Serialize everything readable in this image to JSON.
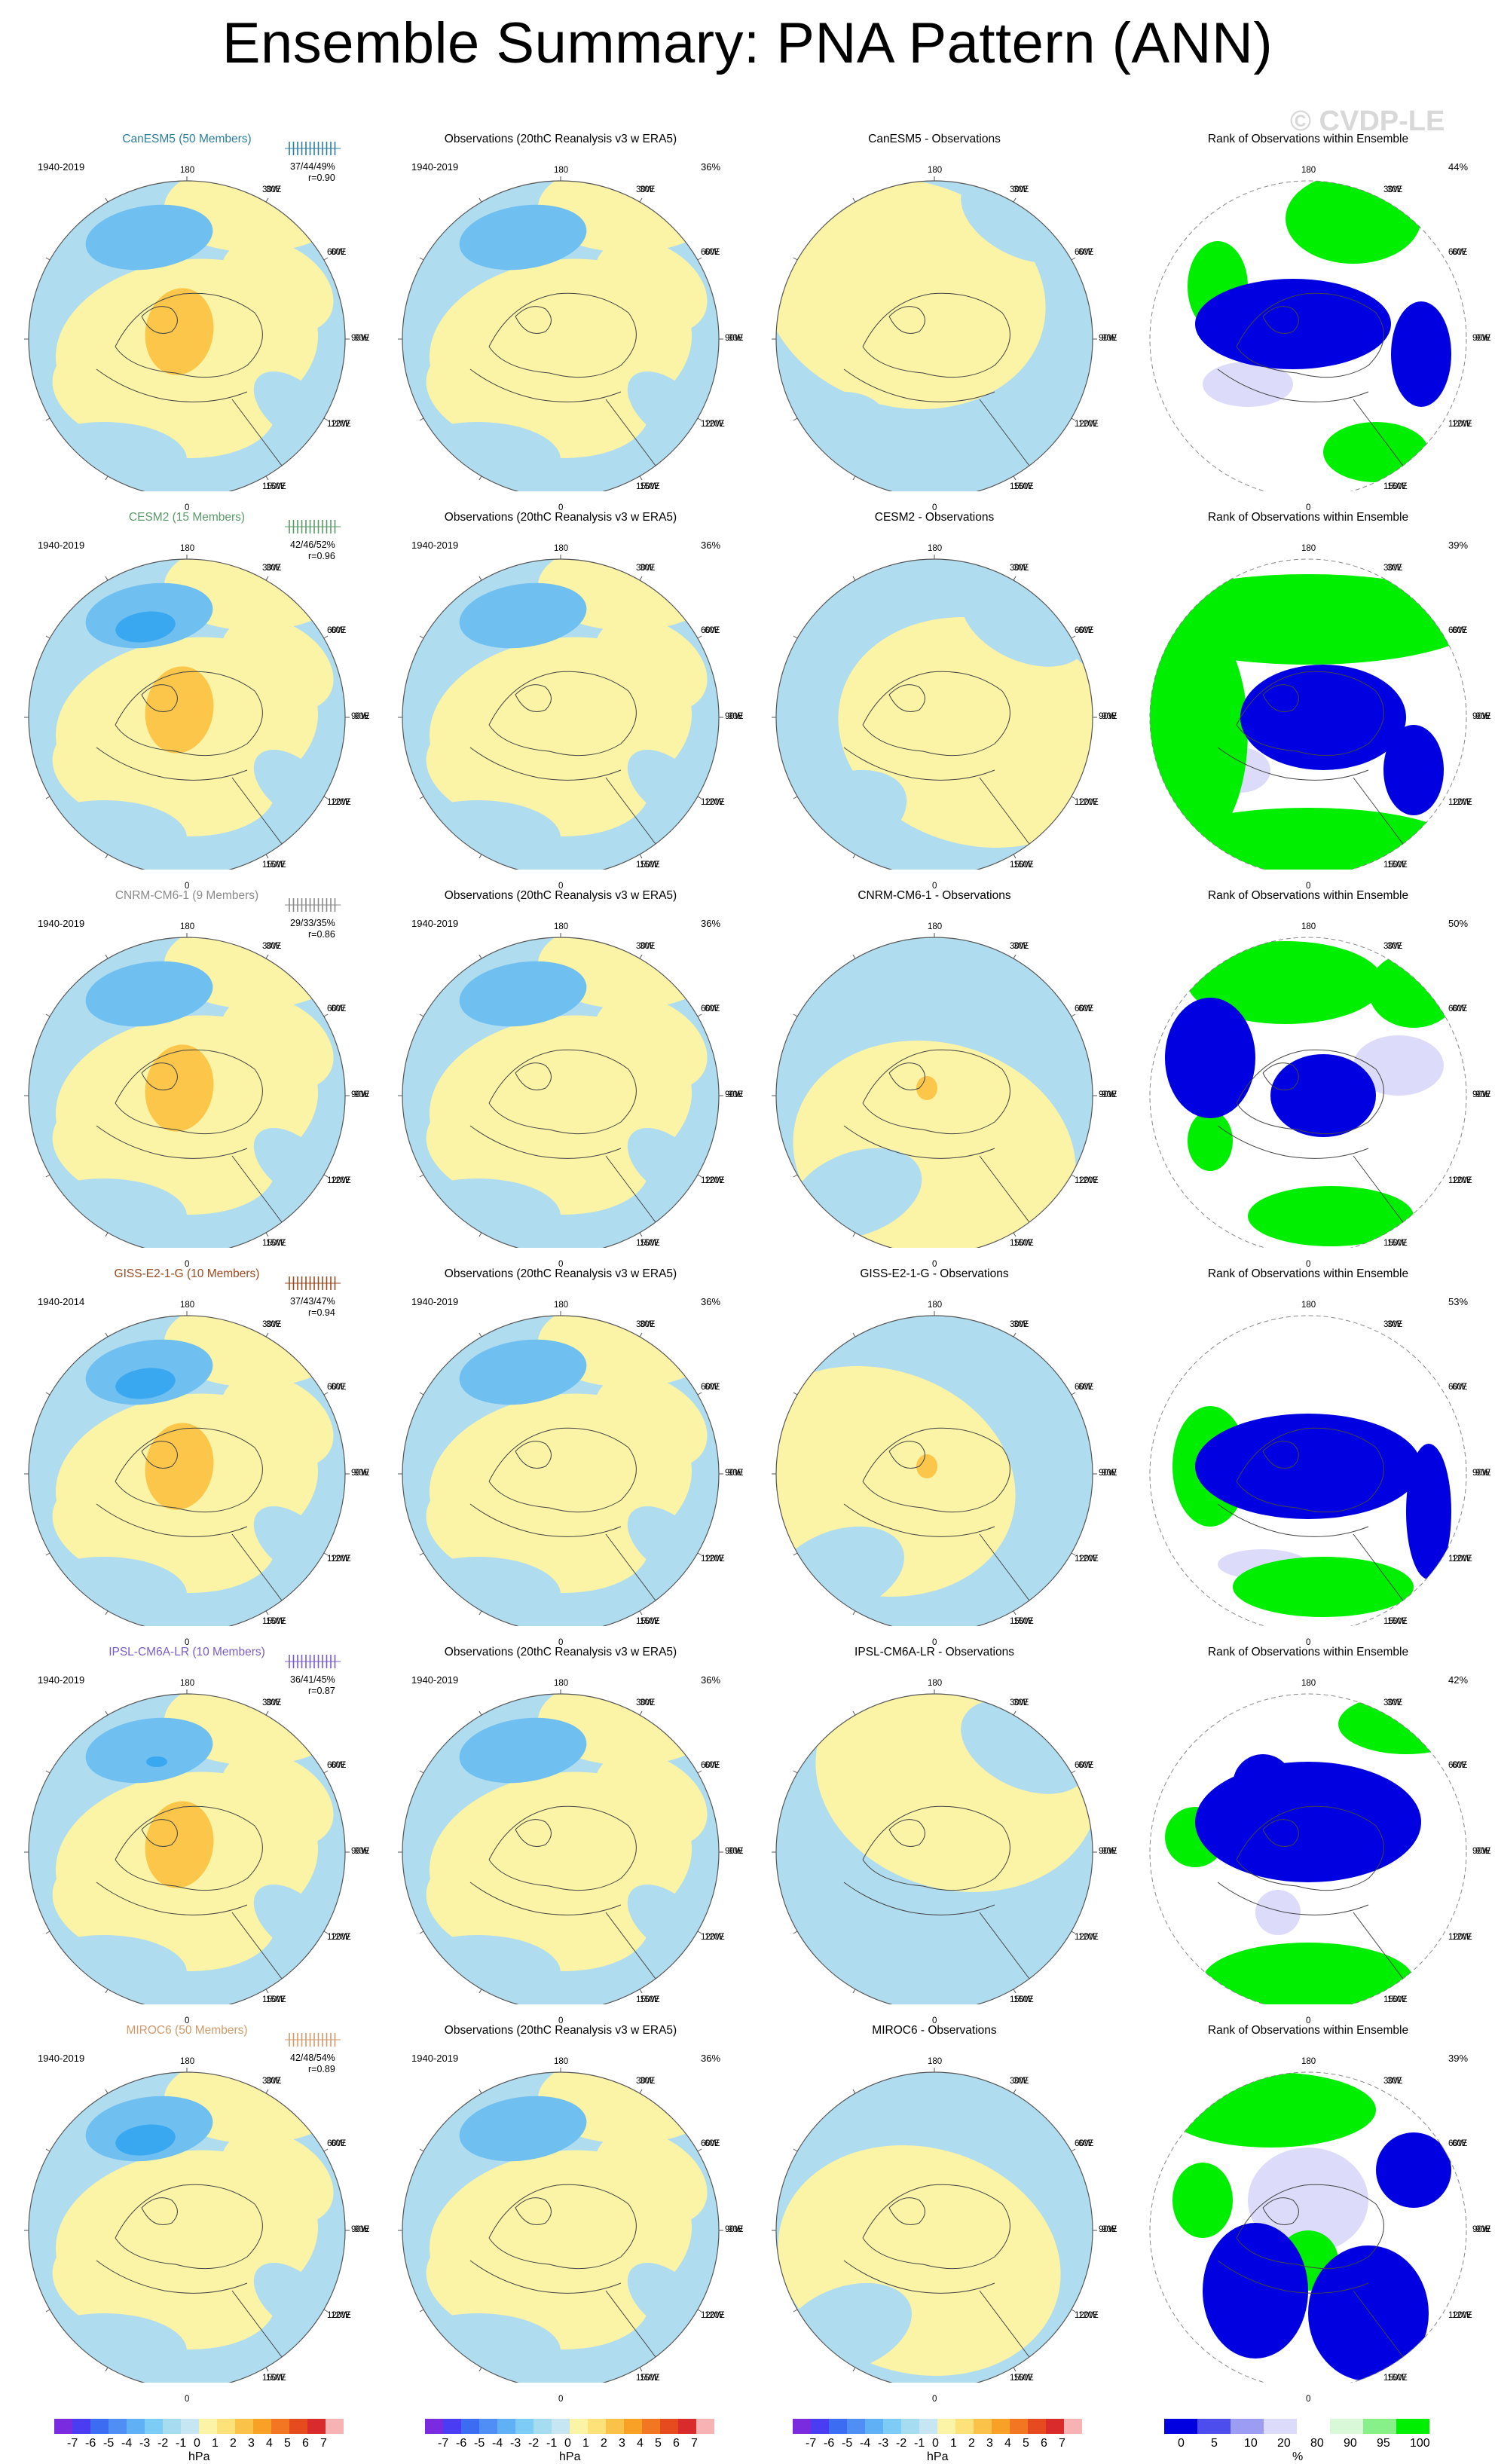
{
  "page": {
    "title": "Ensemble Summary: PNA Pattern (ANN)",
    "watermark": "© CVDP-LE"
  },
  "obs_title": "Observations (20thC Reanalysis v3 w ERA5)",
  "rank_title": "Rank of Observations within Ensemble",
  "meridians": {
    "top": "180",
    "bottom": "0",
    "left": [
      "150W",
      "120W",
      "90W",
      "60W",
      "30W"
    ],
    "right": [
      "150E",
      "120E",
      "90E",
      "60E",
      "30E"
    ]
  },
  "rows": [
    {
      "model": "CanESM5 (50 Members)",
      "diff_title": "CanESM5 - Observations",
      "color": "#2a7f9e",
      "years": "1940-2019",
      "obs_years": "1940-2019",
      "stats": "37/44/49%",
      "r": "r=0.90",
      "obs_pct": "36%",
      "rank_pct": "44%"
    },
    {
      "model": "CESM2 (15 Members)",
      "diff_title": "CESM2 - Observations",
      "color": "#5a9a68",
      "years": "1940-2019",
      "obs_years": "1940-2019",
      "stats": "42/46/52%",
      "r": "r=0.96",
      "obs_pct": "36%",
      "rank_pct": "39%"
    },
    {
      "model": "CNRM-CM6-1 (9 Members)",
      "diff_title": "CNRM-CM6-1 - Observations",
      "color": "#8a8a8a",
      "years": "1940-2019",
      "obs_years": "1940-2019",
      "stats": "29/33/35%",
      "r": "r=0.86",
      "obs_pct": "36%",
      "rank_pct": "50%"
    },
    {
      "model": "GISS-E2-1-G (10 Members)",
      "diff_title": "GISS-E2-1-G - Observations",
      "color": "#9b4a1f",
      "years": "1940-2014",
      "obs_years": "1940-2019",
      "stats": "37/43/47%",
      "r": "r=0.94",
      "obs_pct": "36%",
      "rank_pct": "53%"
    },
    {
      "model": "IPSL-CM6A-LR (10 Members)",
      "diff_title": "IPSL-CM6A-LR - Observations",
      "color": "#7a5cc8",
      "years": "1940-2019",
      "obs_years": "1940-2019",
      "stats": "36/41/45%",
      "r": "r=0.87",
      "obs_pct": "36%",
      "rank_pct": "42%"
    },
    {
      "model": "MIROC6 (50 Members)",
      "diff_title": "MIROC6 - Observations",
      "color": "#d09a6a",
      "years": "1940-2019",
      "obs_years": "1940-2019",
      "stats": "42/48/54%",
      "r": "r=0.89",
      "obs_pct": "36%",
      "rank_pct": "39%"
    }
  ],
  "colorbars": {
    "hpa": {
      "ticks": [
        "-7",
        "-6",
        "-5",
        "-4",
        "-3",
        "-2",
        "-1",
        "0",
        "1",
        "2",
        "3",
        "4",
        "5",
        "6",
        "7"
      ],
      "unit": "hPa",
      "colors": [
        "#7a2be0",
        "#4a3cf0",
        "#3c6cf2",
        "#4f8ff5",
        "#5fb0f5",
        "#7dccf6",
        "#a6dcf0",
        "#c6e6f3",
        "#fbf3a6",
        "#fde27a",
        "#fbc24a",
        "#f9a127",
        "#f37623",
        "#e64a1f",
        "#d92b2b",
        "#f7b3b3"
      ]
    },
    "rank": {
      "ticks": [
        "0",
        "5",
        "10",
        "20",
        "80",
        "90",
        "95",
        "100"
      ],
      "unit": "%",
      "colors": [
        "#0000e0",
        "#4d4dee",
        "#9c9cf2",
        "#dcdcfa",
        "#ffffff",
        "#d8f8d8",
        "#88f088",
        "#00ee00"
      ]
    }
  },
  "colors": {
    "positive": "#fbf3a6",
    "negative": "#b0dcef",
    "neg_strong": "#6fbff0",
    "neg_core": "#3aa8f0",
    "pos_strong": "#fbc64a",
    "rank_low": "#0000e0",
    "rank_high": "#00ee00",
    "rank_pale_blue": "#dcdcfa"
  }
}
